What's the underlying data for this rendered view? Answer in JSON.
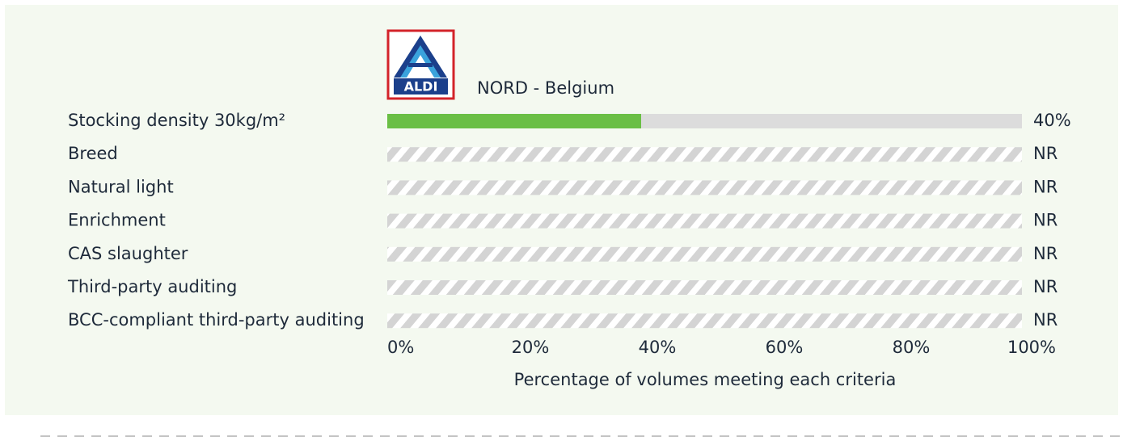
{
  "chart_data": {
    "type": "hbar",
    "logo_text": "ALDI",
    "subtitle": "NORD  - Belgium",
    "categories": [
      "Stocking density 30kg/m²",
      "Breed",
      "Natural light",
      "Enrichment",
      "CAS slaughter",
      "Third-party auditing",
      "BCC-compliant third-party auditing"
    ],
    "values": [
      40,
      null,
      null,
      null,
      null,
      null,
      null
    ],
    "value_labels": [
      "40%",
      "NR",
      "NR",
      "NR",
      "NR",
      "NR",
      "NR"
    ],
    "color": "#6abf45",
    "xlim": [
      0,
      100
    ],
    "xticks": [
      {
        "value": 0,
        "label": "0%"
      },
      {
        "value": 20,
        "label": "20%"
      },
      {
        "value": 40,
        "label": "40%"
      },
      {
        "value": 60,
        "label": "60%"
      },
      {
        "value": 80,
        "label": "80%"
      },
      {
        "value": 100,
        "label": "100%"
      }
    ],
    "xlabel": "Percentage of volumes meeting each criteria"
  }
}
